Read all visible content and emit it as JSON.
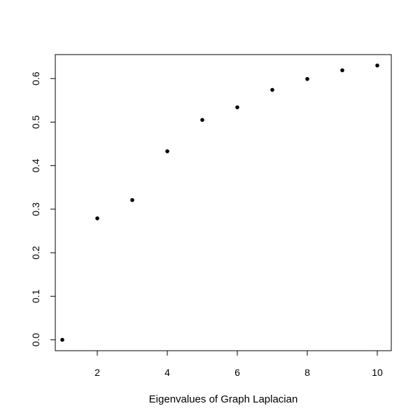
{
  "chart_data": {
    "type": "scatter",
    "title": "",
    "xlabel": "Eigenvalues of Graph Laplacian",
    "ylabel": "",
    "xlim": [
      0.8,
      10.4
    ],
    "ylim": [
      -0.025,
      0.655
    ],
    "xticks": [
      2,
      4,
      6,
      8,
      10
    ],
    "xtick_labels": [
      "2",
      "4",
      "6",
      "8",
      "10"
    ],
    "yticks": [
      0.0,
      0.1,
      0.2,
      0.3,
      0.4,
      0.5,
      0.6
    ],
    "ytick_labels": [
      "0.0",
      "0.1",
      "0.2",
      "0.3",
      "0.4",
      "0.5",
      "0.6"
    ],
    "grid": false,
    "legend": "none",
    "marker": "filled-circle",
    "point_color": "#000000",
    "x": [
      1,
      2,
      3,
      4,
      5,
      6,
      7,
      8,
      9,
      10
    ],
    "y": [
      0.0,
      0.279,
      0.321,
      0.433,
      0.505,
      0.534,
      0.574,
      0.599,
      0.619,
      0.63
    ]
  }
}
